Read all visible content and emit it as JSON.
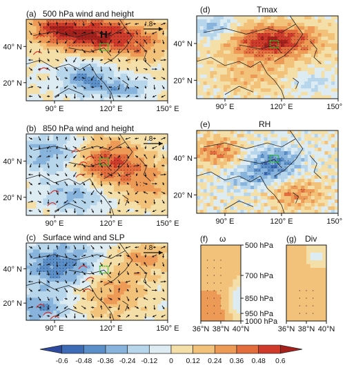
{
  "colors": {
    "scale": [
      "#2E4A9E",
      "#3E6BB5",
      "#5B8FC9",
      "#87B3DC",
      "#B7D6EC",
      "#DDEBF3",
      "#F5DFA8",
      "#F3C27A",
      "#EE9A57",
      "#E46D3E",
      "#CF3A2A",
      "#A6201C"
    ],
    "contour": "#d9261c",
    "box": "#2bbd2b",
    "vector": "#111111"
  },
  "panels": {
    "a": {
      "label": "(a)",
      "title": "500 hPa wind and height",
      "ref_vector": ".8",
      "H": "H"
    },
    "b": {
      "label": "(b)",
      "title": "850 hPa wind and height",
      "ref_vector": ".8"
    },
    "c": {
      "label": "(c)",
      "title": "Surface wind and SLP",
      "ref_vector": ".8"
    },
    "d": {
      "label": "(d)",
      "title": "Tmax"
    },
    "e": {
      "label": "(e)",
      "title": "RH"
    },
    "f": {
      "label": "(f)",
      "title": "ω"
    },
    "g": {
      "label": "(g)",
      "title": "Div"
    }
  },
  "map_ticks": {
    "x": [
      "90° E",
      "120° E",
      "150° E"
    ],
    "y": [
      "40° N",
      "20° N"
    ]
  },
  "section_ticks": {
    "x": [
      "36°N",
      "38°N",
      "40°N"
    ],
    "pressure": [
      "500 hPa",
      "700 hPa",
      "850 hPa",
      "950 hPa",
      "1000 hPa"
    ]
  },
  "chart_data": {
    "type": "heatmap",
    "colorbar": {
      "ticks": [
        "-0.6",
        "-0.48",
        "-0.36",
        "-0.24",
        "-0.12",
        "0",
        "0.12",
        "0.24",
        "0.36",
        "0.48",
        "0.6"
      ],
      "values": [
        -0.6,
        -0.48,
        -0.36,
        -0.24,
        -0.12,
        0,
        0.12,
        0.24,
        0.36,
        0.48,
        0.6
      ],
      "range": [
        -0.72,
        0.72
      ]
    },
    "map_extent": {
      "lon": [
        75,
        150
      ],
      "lat": [
        10,
        55
      ]
    },
    "section_extent": {
      "lat": [
        36,
        40
      ],
      "pressure_hPa": [
        500,
        1000
      ]
    }
  }
}
